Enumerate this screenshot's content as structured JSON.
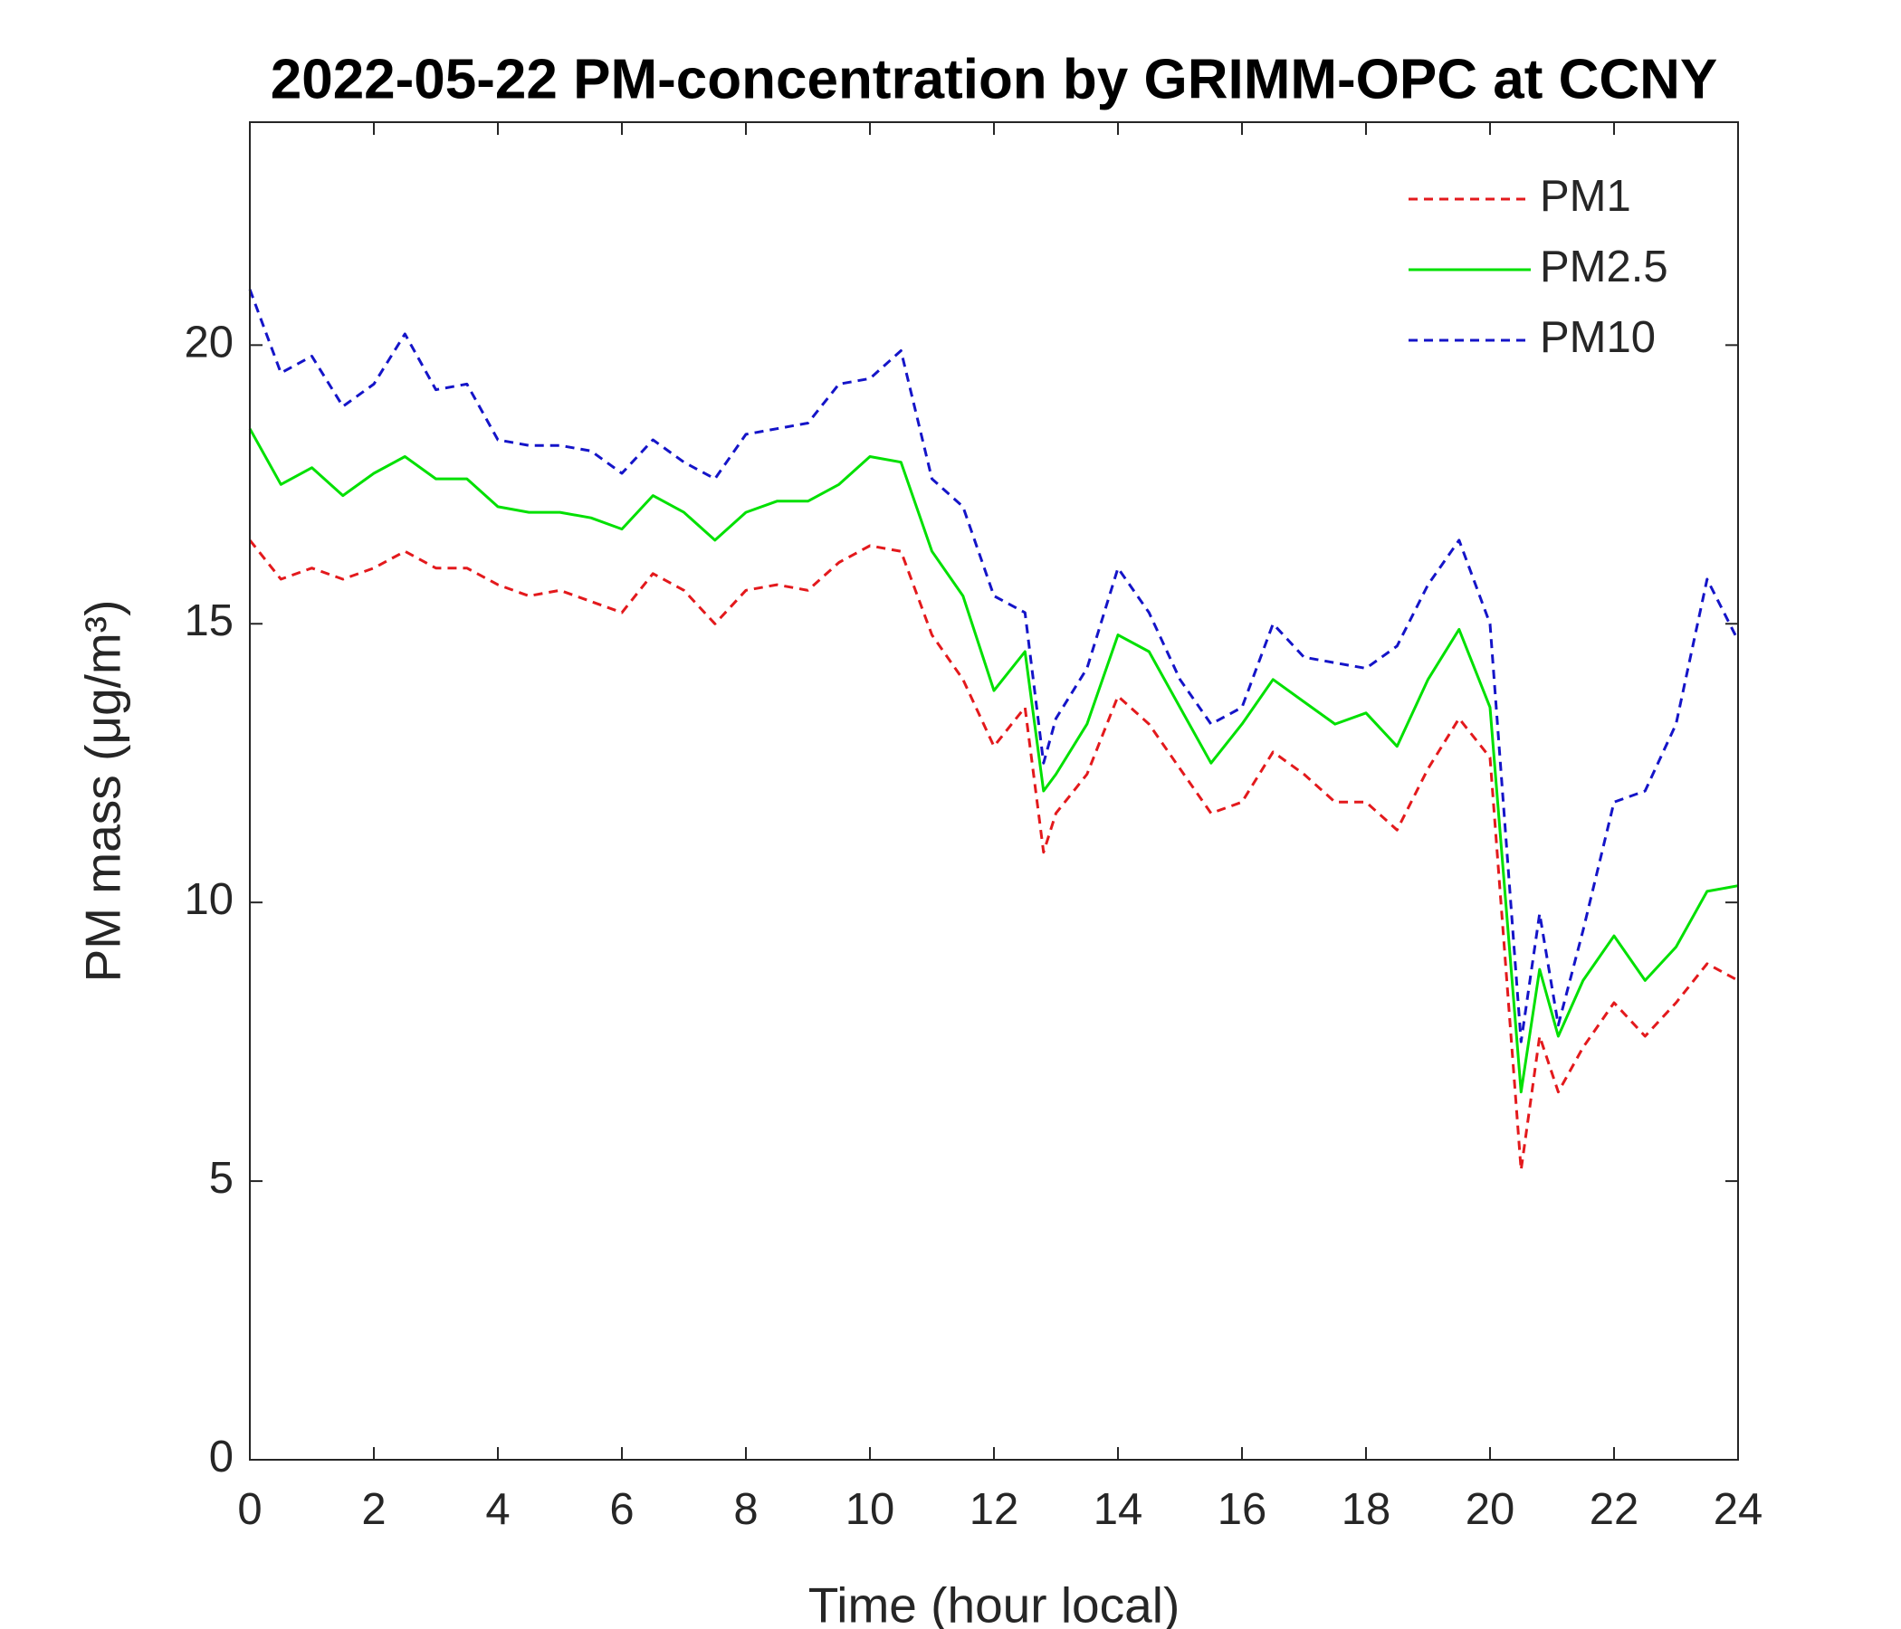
{
  "chart_data": {
    "type": "line",
    "title": "2022-05-22 PM-concentration by GRIMM-OPC at CCNY",
    "xlabel": "Time (hour local)",
    "ylabel": "PM mass (μg/m³)",
    "x": [
      0,
      0.5,
      1,
      1.5,
      2,
      2.5,
      3,
      3.5,
      4,
      4.5,
      5,
      5.5,
      6,
      6.5,
      7,
      7.5,
      8,
      8.5,
      9,
      9.5,
      10,
      10.5,
      11,
      11.5,
      12,
      12.5,
      12.8,
      13,
      13.5,
      14,
      14.5,
      15,
      15.5,
      16,
      16.5,
      17,
      17.5,
      18,
      18.5,
      19,
      19.5,
      20,
      20.5,
      20.8,
      21.1,
      21.5,
      22,
      22.5,
      23,
      23.5,
      24
    ],
    "series": [
      {
        "name": "PM1",
        "color": "#e3191c",
        "linestyle": "dashed",
        "values": [
          16.5,
          15.8,
          16.0,
          15.8,
          16.0,
          16.3,
          16.0,
          16.0,
          15.7,
          15.5,
          15.6,
          15.4,
          15.2,
          15.9,
          15.6,
          15.0,
          15.6,
          15.7,
          15.6,
          16.1,
          16.4,
          16.3,
          14.8,
          14.0,
          12.8,
          13.5,
          10.9,
          11.6,
          12.3,
          13.7,
          13.2,
          12.4,
          11.6,
          11.8,
          12.7,
          12.3,
          11.8,
          11.8,
          11.3,
          12.4,
          13.3,
          12.6,
          5.2,
          7.6,
          6.6,
          7.4,
          8.2,
          7.6,
          8.2,
          8.9,
          8.6
        ]
      },
      {
        "name": "PM2.5",
        "color": "#00e000",
        "linestyle": "solid",
        "values": [
          18.5,
          17.5,
          17.8,
          17.3,
          17.7,
          18.0,
          17.6,
          17.6,
          17.1,
          17.0,
          17.0,
          16.9,
          16.7,
          17.3,
          17.0,
          16.5,
          17.0,
          17.2,
          17.2,
          17.5,
          18.0,
          17.9,
          16.3,
          15.5,
          13.8,
          14.5,
          12.0,
          12.3,
          13.2,
          14.8,
          14.5,
          13.5,
          12.5,
          13.2,
          14.0,
          13.6,
          13.2,
          13.4,
          12.8,
          14.0,
          14.9,
          13.5,
          6.6,
          8.8,
          7.6,
          8.6,
          9.4,
          8.6,
          9.2,
          10.2,
          10.3
        ]
      },
      {
        "name": "PM10",
        "color": "#1414c8",
        "linestyle": "dashed",
        "values": [
          21.0,
          19.5,
          19.8,
          18.9,
          19.3,
          20.2,
          19.2,
          19.3,
          18.3,
          18.2,
          18.2,
          18.1,
          17.7,
          18.3,
          17.9,
          17.6,
          18.4,
          18.5,
          18.6,
          19.3,
          19.4,
          19.9,
          17.6,
          17.1,
          15.5,
          15.2,
          12.5,
          13.3,
          14.2,
          16.0,
          15.2,
          14.0,
          13.2,
          13.5,
          15.0,
          14.4,
          14.3,
          14.2,
          14.6,
          15.7,
          16.5,
          15.0,
          7.5,
          9.8,
          7.8,
          9.5,
          11.8,
          12.0,
          13.2,
          15.8,
          14.7
        ]
      }
    ],
    "xlim": [
      0,
      24
    ],
    "xticks": [
      0,
      2,
      4,
      6,
      8,
      10,
      12,
      14,
      16,
      18,
      20,
      22,
      24
    ],
    "ylim": [
      0,
      24
    ],
    "yticks": [
      0,
      5,
      10,
      15,
      20
    ],
    "grid": false,
    "legend": "top-right"
  }
}
